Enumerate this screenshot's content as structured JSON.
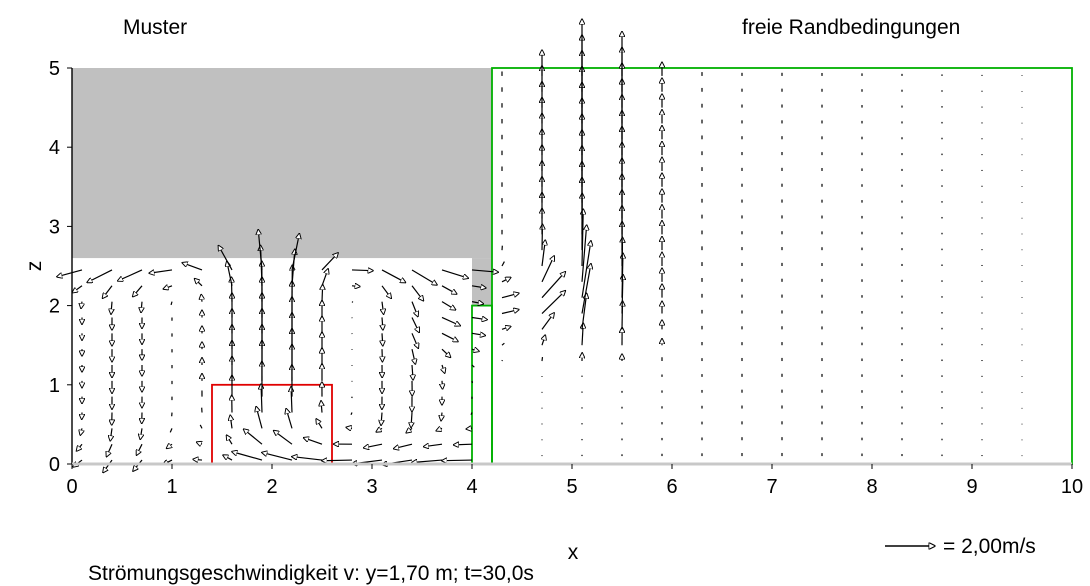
{
  "chart_data": {
    "type": "quiver",
    "title_left": "Muster",
    "title_right": "freie Randbedingungen",
    "xlabel": "x",
    "ylabel": "z",
    "caption": "Strömungsgeschwindigkeit v: y=1,70 m; t=30,0s",
    "scale_label": "= 2,00m/s",
    "scale_value": 2.0,
    "xlim": [
      0,
      10
    ],
    "ylim": [
      0,
      5
    ],
    "x_ticks": [
      "0",
      "1",
      "2",
      "3",
      "4",
      "5",
      "6",
      "7",
      "8",
      "9",
      "10"
    ],
    "y_ticks": [
      "0",
      "1",
      "2",
      "3",
      "4",
      "5"
    ],
    "colors": {
      "solid": "#c0c0c0",
      "red_box": "#e00000",
      "green_box": "#00b000",
      "axis_bottom": "#c8c8c8",
      "arrow": "#000000"
    },
    "regions": [
      {
        "kind": "solid",
        "x": [
          0,
          4.2
        ],
        "z": [
          2.6,
          5.0
        ]
      },
      {
        "kind": "solid",
        "x": [
          4.0,
          4.2
        ],
        "z": [
          2.0,
          2.6
        ]
      },
      {
        "kind": "red_box",
        "x": [
          1.4,
          2.6
        ],
        "z": [
          0.0,
          1.0
        ]
      },
      {
        "kind": "green_box",
        "x": [
          4.0,
          4.2
        ],
        "z": [
          0.0,
          2.0
        ]
      },
      {
        "kind": "green_box",
        "x": [
          4.2,
          10.0
        ],
        "z": [
          0.0,
          5.0
        ]
      }
    ]
  }
}
